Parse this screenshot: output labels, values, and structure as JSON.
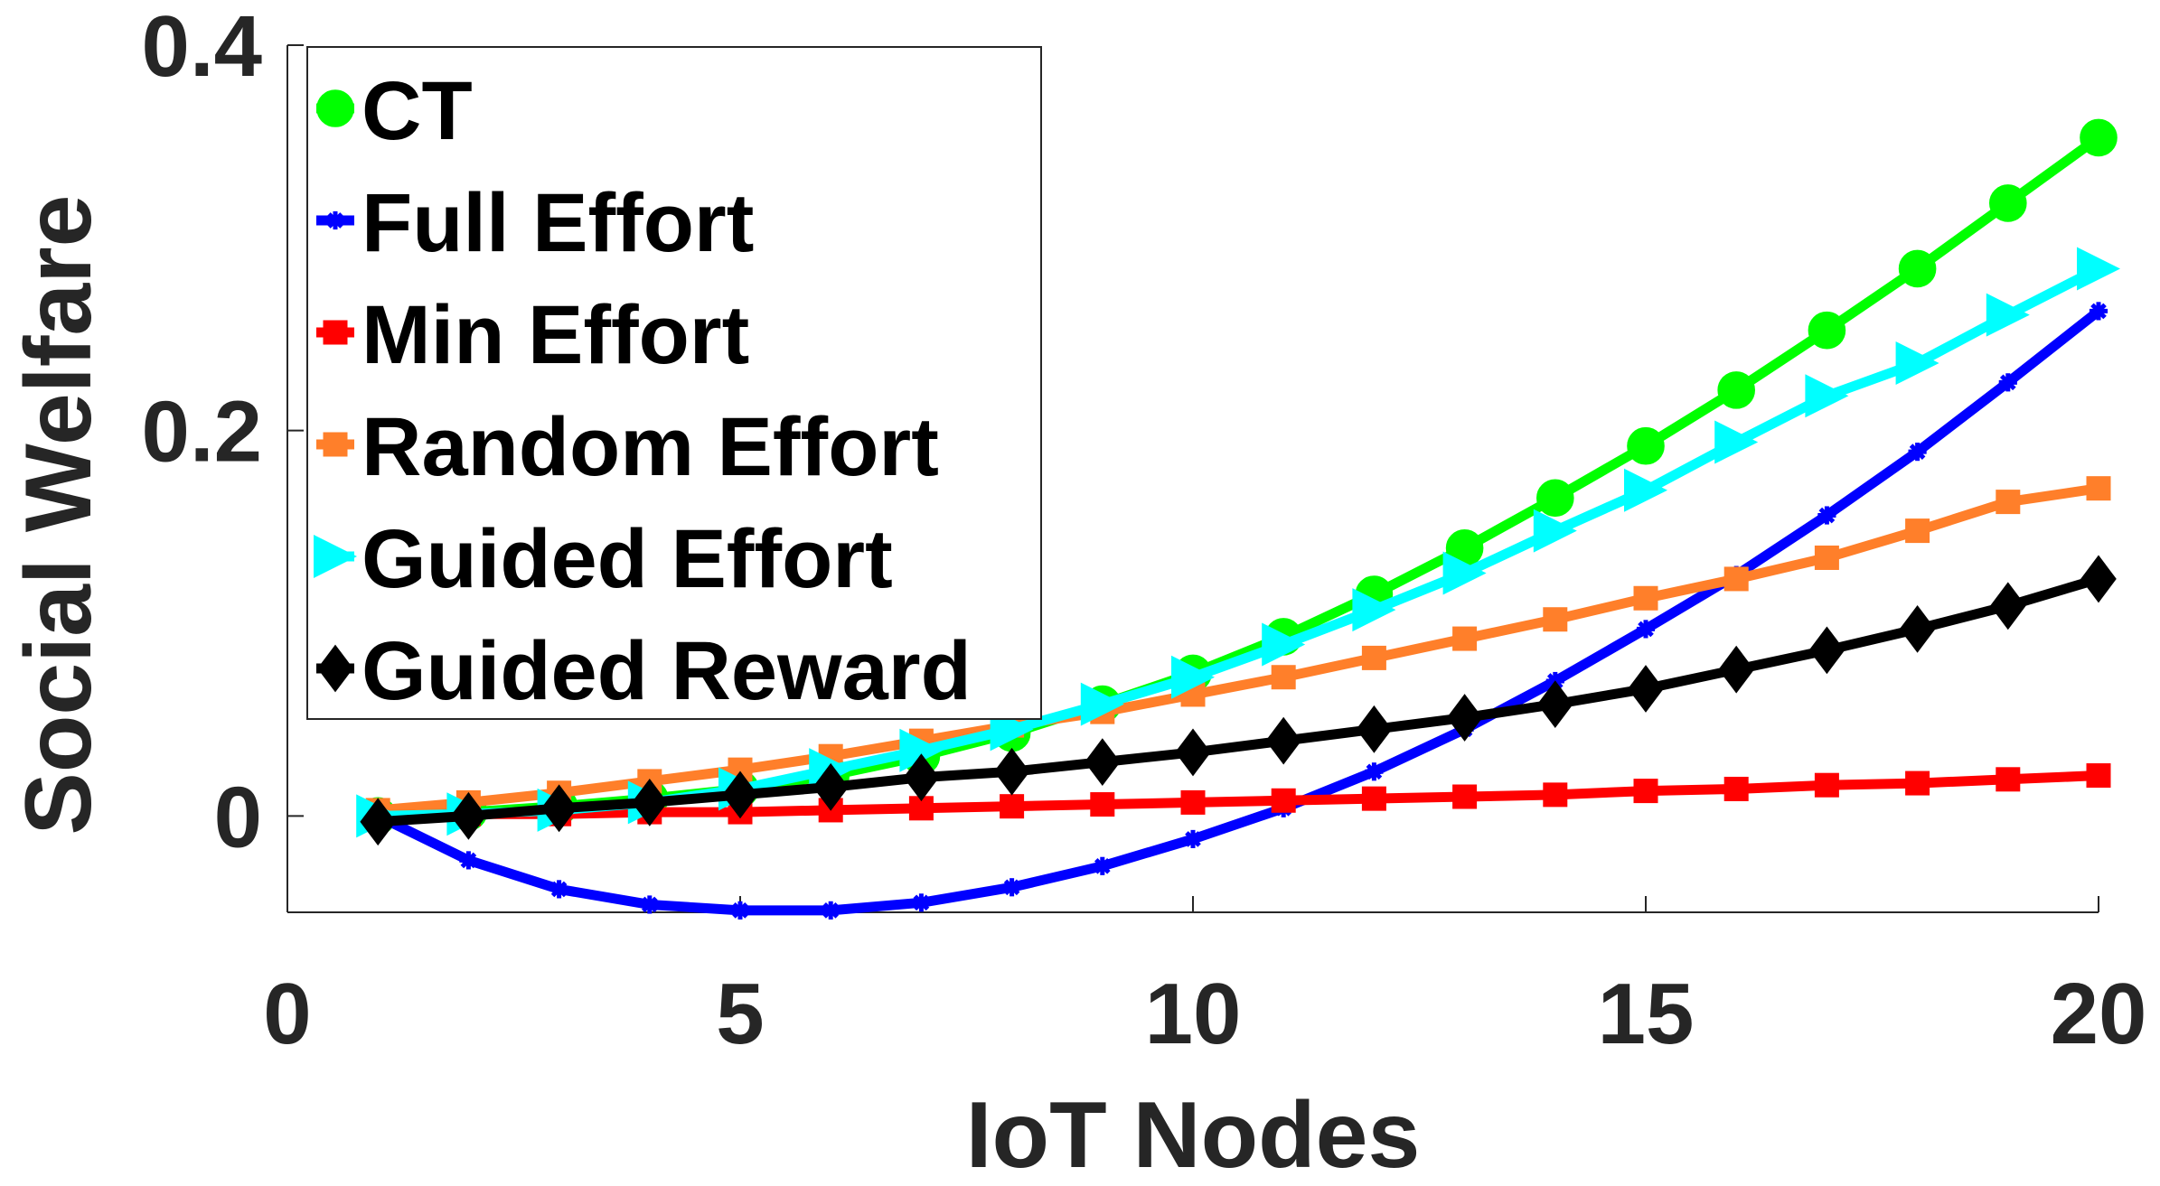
{
  "chart_data": {
    "type": "line",
    "xlabel": "IoT Nodes",
    "ylabel": "Social Welfare",
    "xlim": [
      0,
      20
    ],
    "ylim": [
      -0.05,
      0.4
    ],
    "x_ticks": [
      0,
      5,
      10,
      15,
      20
    ],
    "x_tick_labels": [
      "0",
      "5",
      "10",
      "15",
      "20"
    ],
    "y_ticks": [
      0,
      0.2,
      0.4
    ],
    "y_tick_labels": [
      "0",
      "0.2",
      "0.4"
    ],
    "grid": false,
    "legend_position": "top-left",
    "x": [
      1,
      2,
      3,
      4,
      5,
      6,
      7,
      8,
      9,
      10,
      11,
      12,
      13,
      14,
      15,
      16,
      17,
      18,
      19,
      20
    ],
    "series": [
      {
        "name": "CT",
        "color": "#00ff00",
        "marker": "circle",
        "values": [
          0.0,
          0.002,
          0.005,
          0.009,
          0.014,
          0.021,
          0.031,
          0.043,
          0.058,
          0.074,
          0.093,
          0.115,
          0.139,
          0.165,
          0.192,
          0.221,
          0.252,
          0.284,
          0.318,
          0.352
        ]
      },
      {
        "name": "Full Effort",
        "color": "#0000ff",
        "marker": "asterisk",
        "values": [
          0.0,
          -0.023,
          -0.038,
          -0.046,
          -0.049,
          -0.049,
          -0.045,
          -0.037,
          -0.026,
          -0.012,
          0.004,
          0.023,
          0.045,
          0.07,
          0.097,
          0.125,
          0.156,
          0.189,
          0.225,
          0.262
        ]
      },
      {
        "name": "Min Effort",
        "color": "#ff0000",
        "marker": "square",
        "values": [
          0.0,
          0.001,
          0.001,
          0.002,
          0.002,
          0.003,
          0.004,
          0.005,
          0.006,
          0.007,
          0.008,
          0.009,
          0.01,
          0.011,
          0.013,
          0.014,
          0.016,
          0.017,
          0.019,
          0.021
        ]
      },
      {
        "name": "Random Effort",
        "color": "#ff7f2a",
        "marker": "square",
        "values": [
          0.003,
          0.007,
          0.012,
          0.018,
          0.024,
          0.031,
          0.039,
          0.047,
          0.054,
          0.063,
          0.072,
          0.082,
          0.092,
          0.102,
          0.113,
          0.123,
          0.134,
          0.148,
          0.163,
          0.17
        ]
      },
      {
        "name": "Guided Effort",
        "color": "#00ffff",
        "marker": "triangle-right",
        "values": [
          0.0,
          0.001,
          0.003,
          0.007,
          0.014,
          0.024,
          0.034,
          0.045,
          0.058,
          0.072,
          0.089,
          0.107,
          0.126,
          0.148,
          0.169,
          0.194,
          0.218,
          0.235,
          0.26,
          0.284
        ]
      },
      {
        "name": "Guided Reward",
        "color": "#000000",
        "marker": "diamond",
        "values": [
          -0.003,
          0.0,
          0.004,
          0.007,
          0.011,
          0.015,
          0.02,
          0.023,
          0.028,
          0.033,
          0.039,
          0.045,
          0.051,
          0.058,
          0.066,
          0.076,
          0.086,
          0.097,
          0.109,
          0.123
        ]
      }
    ]
  }
}
